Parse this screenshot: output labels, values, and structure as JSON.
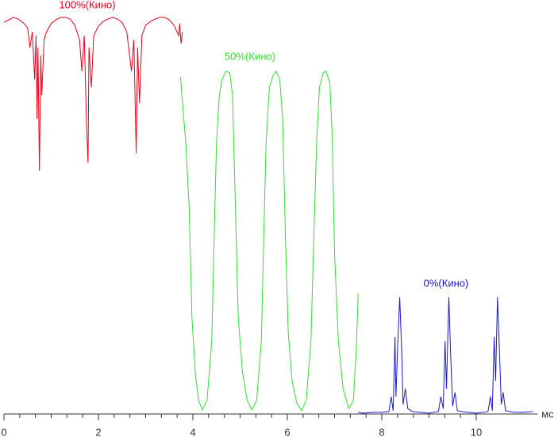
{
  "chart_data": {
    "type": "line",
    "x_label": "мс",
    "xlim": [
      0,
      11.3
    ],
    "xticks": [
      0,
      2,
      4,
      6,
      8,
      10
    ],
    "ylim": [
      0,
      100
    ],
    "series": [
      {
        "name": "100%(Кино)",
        "color": "#e8001c",
        "x": [
          0.0,
          0.1,
          0.2,
          0.3,
          0.4,
          0.5,
          0.55,
          0.6,
          0.65,
          0.68,
          0.7,
          0.72,
          0.75,
          0.78,
          0.8,
          0.85,
          0.9,
          1.0,
          1.1,
          1.2,
          1.3,
          1.4,
          1.5,
          1.6,
          1.65,
          1.7,
          1.75,
          1.78,
          1.8,
          1.85,
          1.9,
          2.0,
          2.1,
          2.2,
          2.3,
          2.4,
          2.5,
          2.6,
          2.7,
          2.75,
          2.8,
          2.83,
          2.87,
          2.92,
          3.0,
          3.1,
          3.2,
          3.3,
          3.4,
          3.5,
          3.6,
          3.7,
          3.72,
          3.75,
          3.78
        ],
        "values": [
          94.6,
          95.2,
          95.8,
          95.4,
          94.6,
          93.3,
          88.5,
          92.3,
          80.8,
          91.4,
          71.3,
          88.5,
          58.8,
          86.6,
          77.0,
          90.4,
          92.3,
          94.3,
          95.2,
          95.8,
          95.8,
          95.4,
          93.9,
          90.4,
          82.8,
          91.4,
          69.3,
          60.7,
          88.5,
          78.9,
          91.4,
          93.7,
          94.8,
          95.4,
          95.8,
          95.4,
          94.6,
          92.3,
          82.8,
          90.4,
          63.0,
          88.5,
          75.1,
          91.4,
          93.9,
          94.8,
          95.4,
          95.8,
          95.8,
          95.2,
          93.9,
          91.4,
          94.3,
          89.5,
          92.3
        ]
      },
      {
        "name": "50%(Кино)",
        "color": "#33dd33",
        "x": [
          3.74,
          3.78,
          3.85,
          3.92,
          3.98,
          4.05,
          4.12,
          4.2,
          4.3,
          4.4,
          4.45,
          4.5,
          4.56,
          4.62,
          4.7,
          4.78,
          4.84,
          4.9,
          4.96,
          5.05,
          5.15,
          5.25,
          5.35,
          5.45,
          5.5,
          5.55,
          5.62,
          5.7,
          5.76,
          5.84,
          5.9,
          5.96,
          6.02,
          6.1,
          6.2,
          6.3,
          6.4,
          6.5,
          6.56,
          6.62,
          6.68,
          6.76,
          6.82,
          6.9,
          6.95,
          7.0,
          7.08,
          7.18,
          7.3,
          7.4,
          7.46,
          7.5
        ],
        "values": [
          81.4,
          75.1,
          65.5,
          50.2,
          23.4,
          10.0,
          3.3,
          1.0,
          3.3,
          17.6,
          42.5,
          65.5,
          77.0,
          80.8,
          82.8,
          82.4,
          77.0,
          50.2,
          23.4,
          10.0,
          3.3,
          1.0,
          3.3,
          17.6,
          42.5,
          65.5,
          78.9,
          81.8,
          82.8,
          80.8,
          71.3,
          42.5,
          19.5,
          8.0,
          2.7,
          0.8,
          3.3,
          17.6,
          42.5,
          65.5,
          78.9,
          82.4,
          82.8,
          79.9,
          67.4,
          38.7,
          17.6,
          6.1,
          1.3,
          3.3,
          15.7,
          29.1
        ]
      },
      {
        "name": "0%(Кино)",
        "color": "#1a1acc",
        "x": [
          7.5,
          7.6,
          7.8,
          8.0,
          8.15,
          8.2,
          8.24,
          8.28,
          8.3,
          8.34,
          8.38,
          8.42,
          8.45,
          8.5,
          8.55,
          8.65,
          8.8,
          9.0,
          9.2,
          9.25,
          9.3,
          9.34,
          9.37,
          9.42,
          9.46,
          9.5,
          9.55,
          9.6,
          9.8,
          10.0,
          10.25,
          10.3,
          10.34,
          10.38,
          10.41,
          10.45,
          10.49,
          10.53,
          10.57,
          10.62,
          10.8,
          11.0,
          11.2
        ],
        "values": [
          0.4,
          0.2,
          0.4,
          0.4,
          0.6,
          4.2,
          0.8,
          18.6,
          4.2,
          17.6,
          28.2,
          15.7,
          2.3,
          6.1,
          1.3,
          0.6,
          0.4,
          0.2,
          0.6,
          4.2,
          1.3,
          17.6,
          6.1,
          28.2,
          13.8,
          1.9,
          5.2,
          0.8,
          0.4,
          0.2,
          0.6,
          4.2,
          0.8,
          18.6,
          8.0,
          28.2,
          15.7,
          2.3,
          5.2,
          0.8,
          0.4,
          0.4,
          0.6
        ]
      }
    ]
  }
}
